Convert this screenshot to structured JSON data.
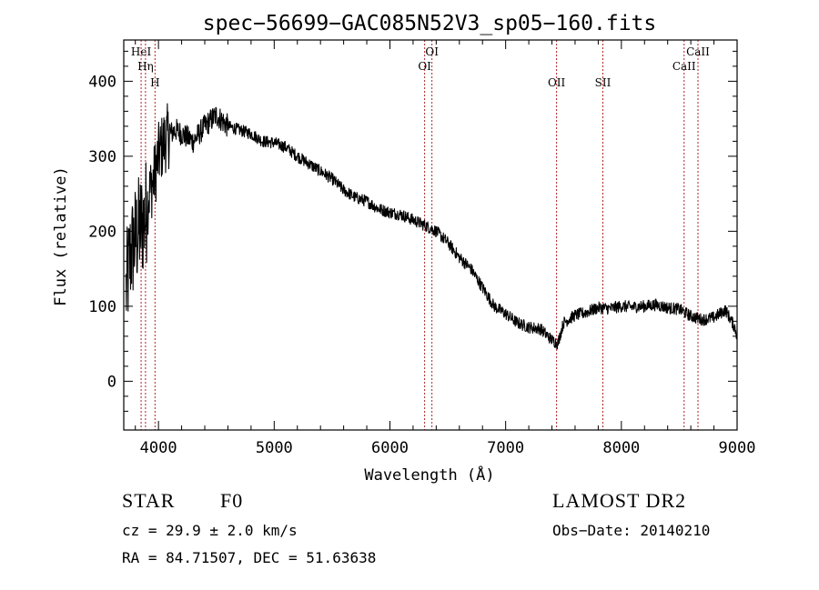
{
  "chart_data": {
    "type": "line",
    "title": "spec−56699−GAC085N52V3_sp05−160.fits",
    "xlabel": "Wavelength (Å)",
    "ylabel": "Flux (relative)",
    "xlim": [
      3700,
      9000
    ],
    "ylim": [
      -65,
      455
    ],
    "xticks": [
      4000,
      5000,
      6000,
      7000,
      8000,
      9000
    ],
    "yticks": [
      0,
      100,
      200,
      300,
      400
    ],
    "grid": false,
    "line_color": "#000000",
    "marker_color": "#b22222",
    "series": [
      {
        "x": [
          3720,
          3760,
          3800,
          3840,
          3880,
          3920,
          3960,
          4000,
          4050,
          4100,
          4150,
          4200,
          4300,
          4400,
          4500,
          4600,
          4700,
          4800,
          4900,
          5000,
          5100,
          5200,
          5300,
          5400,
          5500,
          5600,
          5700,
          5800,
          5900,
          6000,
          6100,
          6200,
          6300,
          6400,
          6500,
          6600,
          6700,
          6800,
          6900,
          7000,
          7100,
          7200,
          7300,
          7400,
          7450,
          7500,
          7600,
          7700,
          7800,
          7900,
          8000,
          8100,
          8200,
          8300,
          8400,
          8500,
          8600,
          8700,
          8800,
          8900,
          8980,
          9000
        ],
        "y": [
          120,
          170,
          190,
          205,
          215,
          250,
          270,
          300,
          320,
          330,
          335,
          330,
          320,
          340,
          355,
          340,
          335,
          330,
          320,
          318,
          312,
          300,
          290,
          280,
          270,
          255,
          245,
          240,
          230,
          225,
          222,
          215,
          208,
          200,
          185,
          165,
          150,
          125,
          100,
          90,
          78,
          72,
          70,
          55,
          50,
          78,
          88,
          92,
          98,
          97,
          100,
          99,
          100,
          102,
          98,
          96,
          87,
          82,
          85,
          95,
          72,
          60
        ]
      }
    ],
    "lines": [
      {
        "label": "HeI",
        "x": 3850,
        "pos": "top"
      },
      {
        "label": "Hη",
        "x": 3888,
        "pos": "mid"
      },
      {
        "label": "H",
        "x": 3970,
        "pos": "low"
      },
      {
        "label": "OI",
        "x": 6300,
        "pos": "mid"
      },
      {
        "label": "OI",
        "x": 6363,
        "pos": "top"
      },
      {
        "label": "OII",
        "x": 7440,
        "pos": "low"
      },
      {
        "label": "SII",
        "x": 7840,
        "pos": "low"
      },
      {
        "label": "CaII",
        "x": 8542,
        "pos": "mid"
      },
      {
        "label": "CaII",
        "x": 8662,
        "pos": "top"
      }
    ]
  },
  "info": {
    "object_class": "STAR",
    "subclass": "F0",
    "survey": "LAMOST DR2",
    "cz": "cz = 29.9 ± 2.0 km/s",
    "obs_date": "Obs−Date: 20140210",
    "coords": "RA =  84.71507, DEC =  51.63638"
  }
}
